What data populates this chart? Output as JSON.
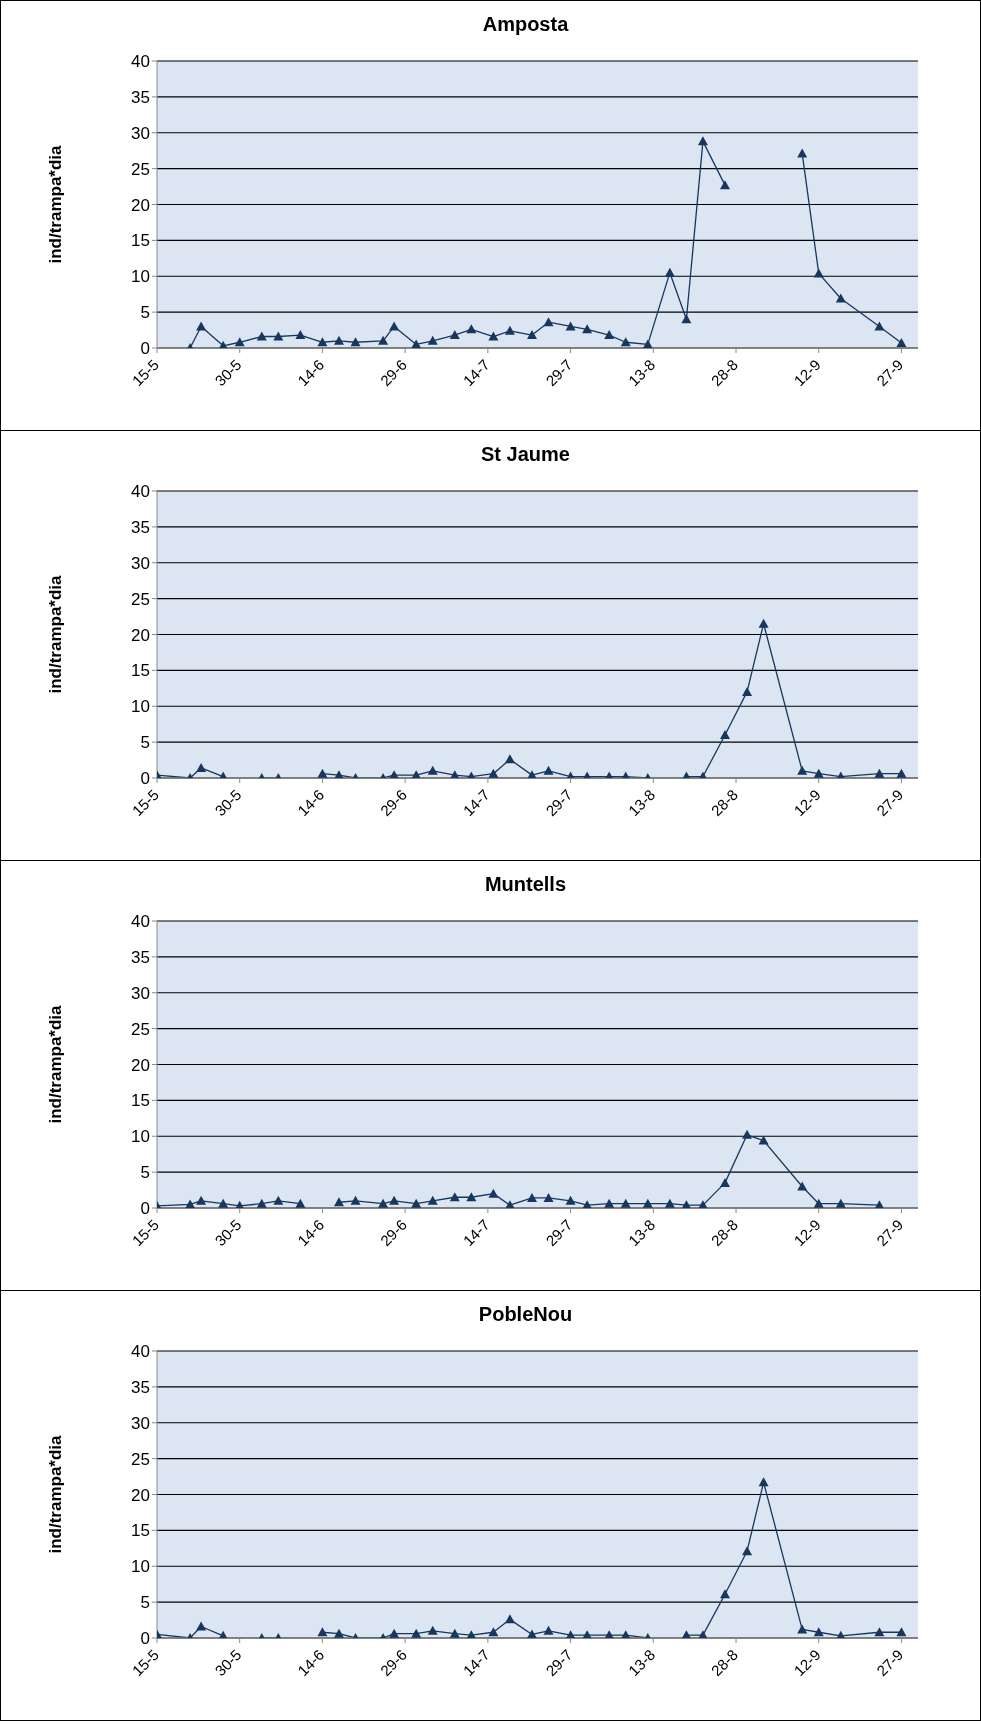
{
  "chart_data": [
    {
      "type": "line",
      "title": "Amposta",
      "ylabel": "ind/trampa*dia",
      "color": "#17375e",
      "marker": "triangle",
      "grid": "y",
      "xlim": [
        "--05-15",
        "--09-30"
      ],
      "ylim": [
        0,
        40
      ],
      "yticks": [
        0,
        5,
        10,
        15,
        20,
        25,
        30,
        35,
        40
      ],
      "xticks": [
        {
          "value": "--05-15",
          "label": "15-5"
        },
        {
          "value": "--05-30",
          "label": "30-5"
        },
        {
          "value": "--06-14",
          "label": "14-6"
        },
        {
          "value": "--06-29",
          "label": "29-6"
        },
        {
          "value": "--07-14",
          "label": "14-7"
        },
        {
          "value": "--07-29",
          "label": "29-7"
        },
        {
          "value": "--08-13",
          "label": "13-8"
        },
        {
          "value": "--08-28",
          "label": "28-8"
        },
        {
          "value": "--09-12",
          "label": "12-9"
        },
        {
          "value": "--09-27",
          "label": "27-9"
        }
      ],
      "x": [
        "--05-21",
        "--05-23",
        "--05-27",
        "--05-30",
        "--06-03",
        "--06-06",
        "--06-10",
        "--06-14",
        "--06-17",
        "--06-20",
        "--06-25",
        "--06-27",
        "--07-01",
        "--07-04",
        "--07-08",
        "--07-11",
        "--07-15",
        "--07-18",
        "--07-22",
        "--07-25",
        "--07-29",
        "--08-01",
        "--08-05",
        "--08-08",
        "--08-12",
        "--08-16",
        "--08-19",
        "--08-22",
        "--08-26",
        "--09-02",
        "--09-09",
        "--09-12",
        "--09-16",
        "--09-23",
        "--09-27"
      ],
      "values": [
        0,
        3,
        0.3,
        0.8,
        1.6,
        1.6,
        1.8,
        0.8,
        1,
        0.8,
        1,
        3,
        0.5,
        1,
        1.8,
        2.6,
        1.6,
        2.4,
        1.8,
        3.6,
        3,
        2.6,
        1.8,
        0.8,
        0.5,
        10.5,
        4,
        28.8,
        22.7,
        null,
        27.1,
        10.4,
        6.9,
        3,
        0.7
      ]
    },
    {
      "type": "line",
      "title": "St Jaume",
      "ylabel": "ind/trampa*dia",
      "color": "#17375e",
      "marker": "triangle",
      "grid": "y",
      "xlim": [
        "--05-15",
        "--09-30"
      ],
      "ylim": [
        0,
        40
      ],
      "yticks": [
        0,
        5,
        10,
        15,
        20,
        25,
        30,
        35,
        40
      ],
      "xticks": [
        {
          "value": "--05-15",
          "label": "15-5"
        },
        {
          "value": "--05-30",
          "label": "30-5"
        },
        {
          "value": "--06-14",
          "label": "14-6"
        },
        {
          "value": "--06-29",
          "label": "29-6"
        },
        {
          "value": "--07-14",
          "label": "14-7"
        },
        {
          "value": "--07-29",
          "label": "29-7"
        },
        {
          "value": "--08-13",
          "label": "13-8"
        },
        {
          "value": "--08-28",
          "label": "28-8"
        },
        {
          "value": "--09-12",
          "label": "12-9"
        },
        {
          "value": "--09-27",
          "label": "27-9"
        }
      ],
      "x": [
        "--05-15",
        "--05-21",
        "--05-23",
        "--05-27",
        "--05-30",
        "--06-03",
        "--06-06",
        "--06-10",
        "--06-14",
        "--06-17",
        "--06-20",
        "--06-25",
        "--06-27",
        "--07-01",
        "--07-04",
        "--07-08",
        "--07-11",
        "--07-15",
        "--07-18",
        "--07-22",
        "--07-25",
        "--07-29",
        "--08-01",
        "--08-05",
        "--08-08",
        "--08-12",
        "--08-16",
        "--08-19",
        "--08-22",
        "--08-26",
        "--08-30",
        "--09-02",
        "--09-09",
        "--09-12",
        "--09-16",
        "--09-23",
        "--09-27"
      ],
      "values": [
        0.4,
        0,
        1.4,
        0.2,
        null,
        0,
        0,
        null,
        0.6,
        0.4,
        0,
        0,
        0.4,
        0.4,
        1,
        0.4,
        0.2,
        0.6,
        2.6,
        0.4,
        1,
        0.2,
        0.2,
        0.2,
        0.2,
        0,
        null,
        0.2,
        0.2,
        6,
        12,
        21.5,
        1,
        0.6,
        0.2,
        0.6,
        0.6
      ]
    },
    {
      "type": "line",
      "title": "Muntells",
      "ylabel": "ind/trampa*dia",
      "color": "#17375e",
      "marker": "triangle",
      "grid": "y",
      "xlim": [
        "--05-15",
        "--09-30"
      ],
      "ylim": [
        0,
        40
      ],
      "yticks": [
        0,
        5,
        10,
        15,
        20,
        25,
        30,
        35,
        40
      ],
      "xticks": [
        {
          "value": "--05-15",
          "label": "15-5"
        },
        {
          "value": "--05-30",
          "label": "30-5"
        },
        {
          "value": "--06-14",
          "label": "14-6"
        },
        {
          "value": "--06-29",
          "label": "29-6"
        },
        {
          "value": "--07-14",
          "label": "14-7"
        },
        {
          "value": "--07-29",
          "label": "29-7"
        },
        {
          "value": "--08-13",
          "label": "13-8"
        },
        {
          "value": "--08-28",
          "label": "28-8"
        },
        {
          "value": "--09-12",
          "label": "12-9"
        },
        {
          "value": "--09-27",
          "label": "27-9"
        }
      ],
      "x": [
        "--05-15",
        "--05-21",
        "--05-23",
        "--05-27",
        "--05-30",
        "--06-03",
        "--06-06",
        "--06-10",
        "--06-14",
        "--06-17",
        "--06-20",
        "--06-25",
        "--06-27",
        "--07-01",
        "--07-04",
        "--07-08",
        "--07-11",
        "--07-15",
        "--07-18",
        "--07-22",
        "--07-25",
        "--07-29",
        "--08-01",
        "--08-05",
        "--08-08",
        "--08-12",
        "--08-16",
        "--08-19",
        "--08-22",
        "--08-26",
        "--08-30",
        "--09-02",
        "--09-09",
        "--09-12",
        "--09-16",
        "--09-23"
      ],
      "values": [
        0.3,
        0.5,
        1,
        0.6,
        0.3,
        0.6,
        1,
        0.6,
        null,
        0.8,
        1,
        0.6,
        1,
        0.6,
        1,
        1.5,
        1.5,
        2,
        0.4,
        1.4,
        1.4,
        1,
        0.4,
        0.6,
        0.6,
        0.6,
        0.6,
        0.4,
        0.4,
        3.5,
        10.2,
        9.4,
        3,
        0.6,
        0.6,
        0.4
      ]
    },
    {
      "type": "line",
      "title": "PobleNou",
      "ylabel": "ind/trampa*dia",
      "color": "#17375e",
      "marker": "triangle",
      "grid": "y",
      "xlim": [
        "--05-15",
        "--09-30"
      ],
      "ylim": [
        0,
        40
      ],
      "yticks": [
        0,
        5,
        10,
        15,
        20,
        25,
        30,
        35,
        40
      ],
      "xticks": [
        {
          "value": "--05-15",
          "label": "15-5"
        },
        {
          "value": "--05-30",
          "label": "30-5"
        },
        {
          "value": "--06-14",
          "label": "14-6"
        },
        {
          "value": "--06-29",
          "label": "29-6"
        },
        {
          "value": "--07-14",
          "label": "14-7"
        },
        {
          "value": "--07-29",
          "label": "29-7"
        },
        {
          "value": "--08-13",
          "label": "13-8"
        },
        {
          "value": "--08-28",
          "label": "28-8"
        },
        {
          "value": "--09-12",
          "label": "12-9"
        },
        {
          "value": "--09-27",
          "label": "27-9"
        }
      ],
      "x": [
        "--05-15",
        "--05-21",
        "--05-23",
        "--05-27",
        "--05-30",
        "--06-03",
        "--06-06",
        "--06-10",
        "--06-14",
        "--06-17",
        "--06-20",
        "--06-25",
        "--06-27",
        "--07-01",
        "--07-04",
        "--07-08",
        "--07-11",
        "--07-15",
        "--07-18",
        "--07-22",
        "--07-25",
        "--07-29",
        "--08-01",
        "--08-05",
        "--08-08",
        "--08-12",
        "--08-16",
        "--08-19",
        "--08-22",
        "--08-26",
        "--08-30",
        "--09-02",
        "--09-09",
        "--09-12",
        "--09-16",
        "--09-23",
        "--09-27"
      ],
      "values": [
        0.5,
        0,
        1.6,
        0.3,
        null,
        0,
        0,
        null,
        0.8,
        0.6,
        0,
        0,
        0.6,
        0.6,
        1,
        0.6,
        0.4,
        0.8,
        2.6,
        0.5,
        1,
        0.4,
        0.4,
        0.4,
        0.4,
        0,
        null,
        0.4,
        0.4,
        6.1,
        12.1,
        21.7,
        1.2,
        0.8,
        0.3,
        0.8,
        0.8
      ]
    }
  ]
}
